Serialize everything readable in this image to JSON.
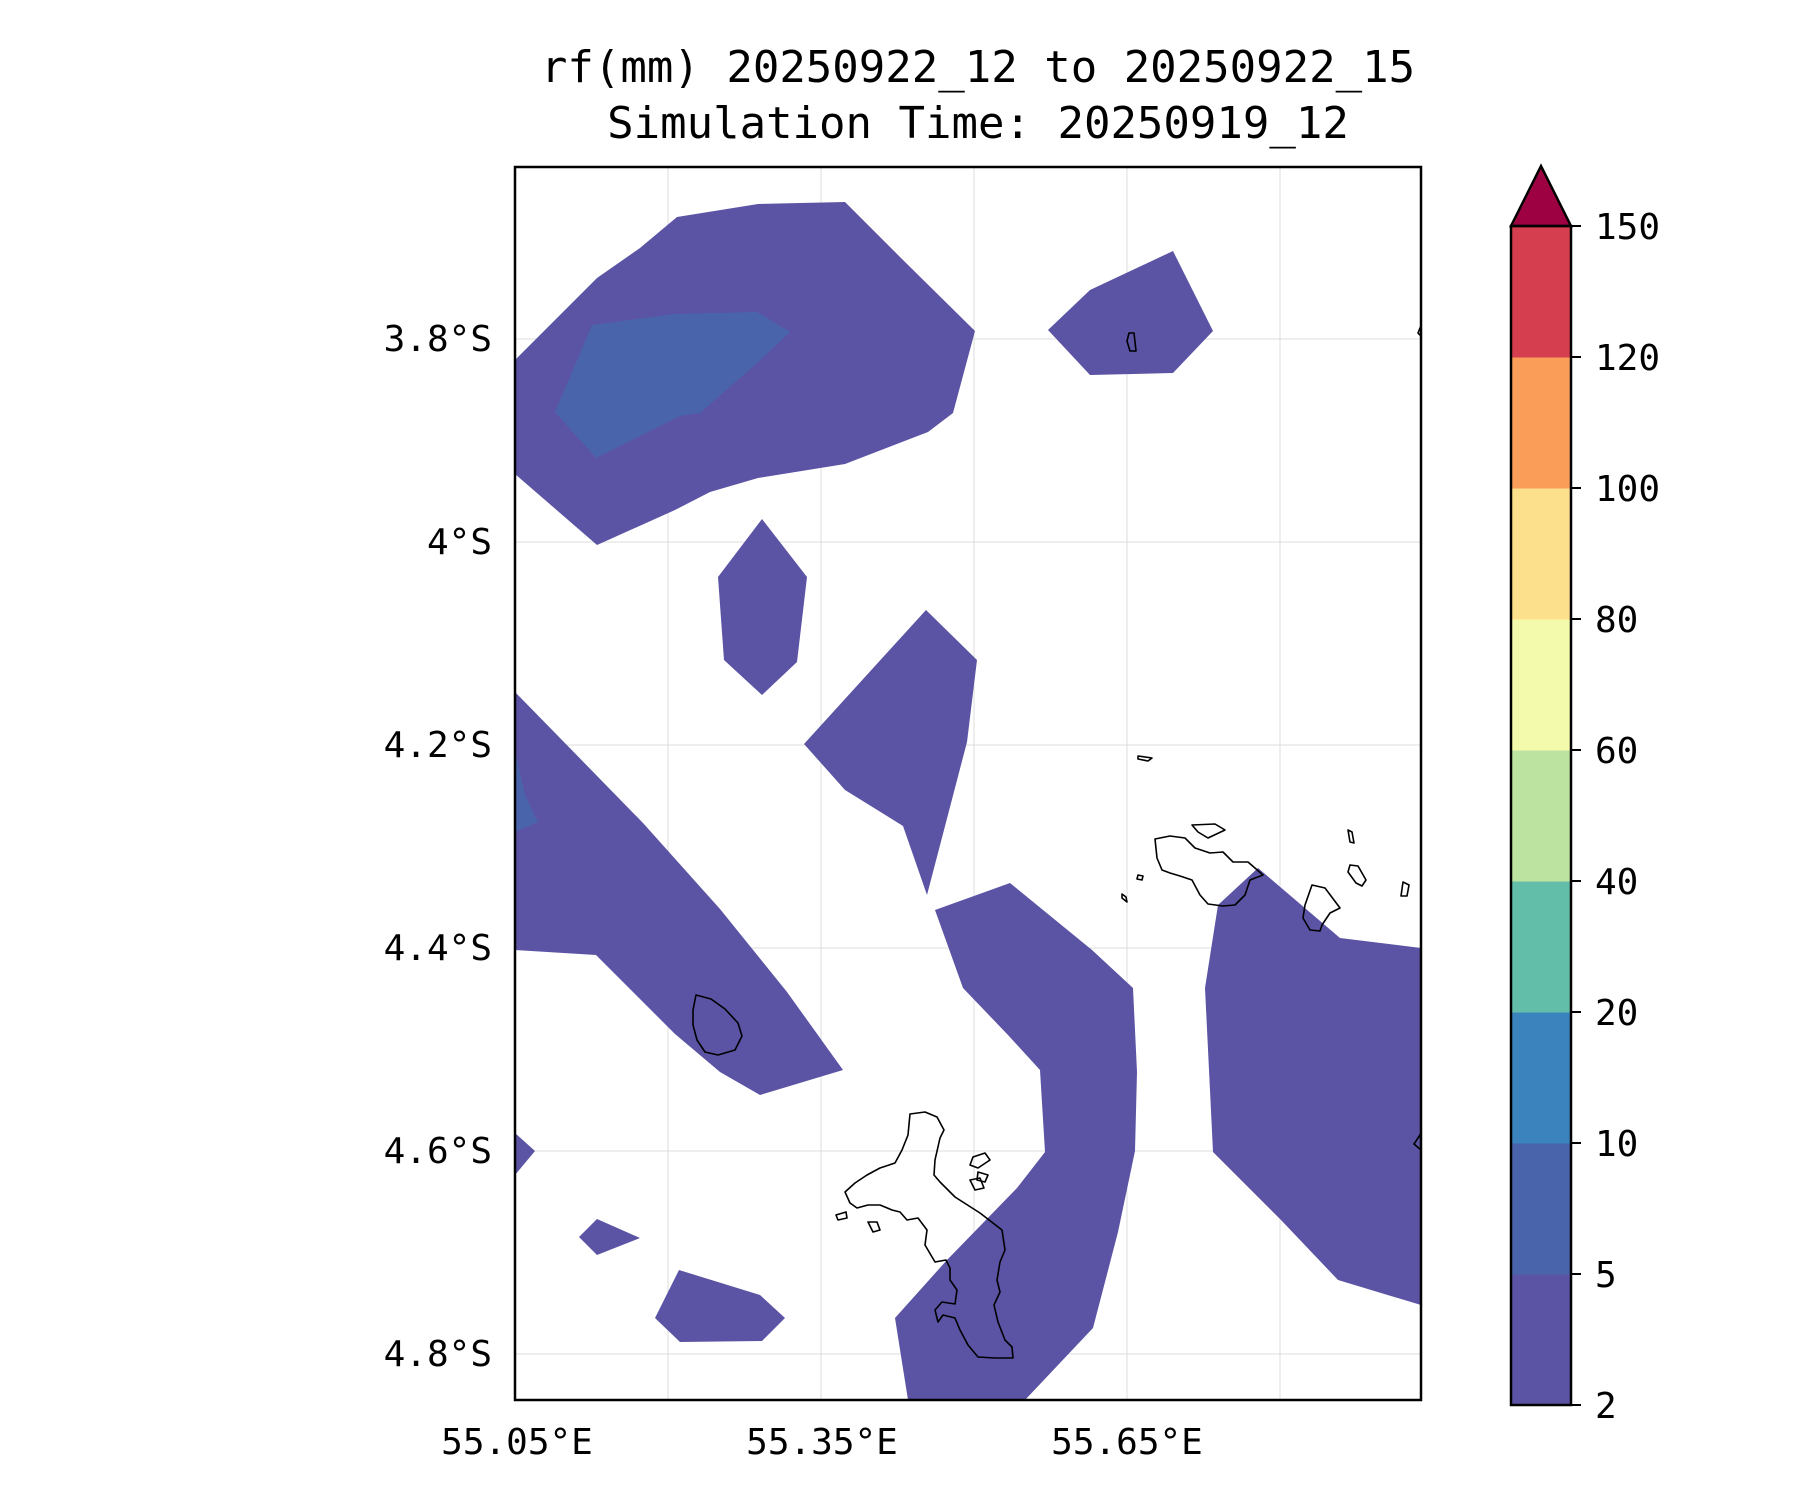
{
  "title": {
    "line1": "rf(mm) 20250922_12 to 20250922_15",
    "line2": "Simulation Time: 20250919_12"
  },
  "map": {
    "lon_ticks": [
      "55.05°E",
      "55.35°E",
      "55.65°E"
    ],
    "lat_ticks": [
      "3.8°S",
      "4°S",
      "4.2°S",
      "4.4°S",
      "4.6°S",
      "4.8°S"
    ]
  },
  "colorbar": {
    "levels": [
      "2",
      "5",
      "10",
      "20",
      "40",
      "60",
      "80",
      "100",
      "120",
      "150"
    ],
    "colors": [
      "#5b53a4",
      "#4a64ac",
      "#3b83bc",
      "#63bea9",
      "#bde3a0",
      "#f4faab",
      "#fde08b",
      "#f99d59",
      "#d53e4f"
    ],
    "extend_color": "#9e0142",
    "extend": "max"
  },
  "colors": {
    "level_2_5": "#5b53a4",
    "level_5_10": "#4a64ac"
  }
}
